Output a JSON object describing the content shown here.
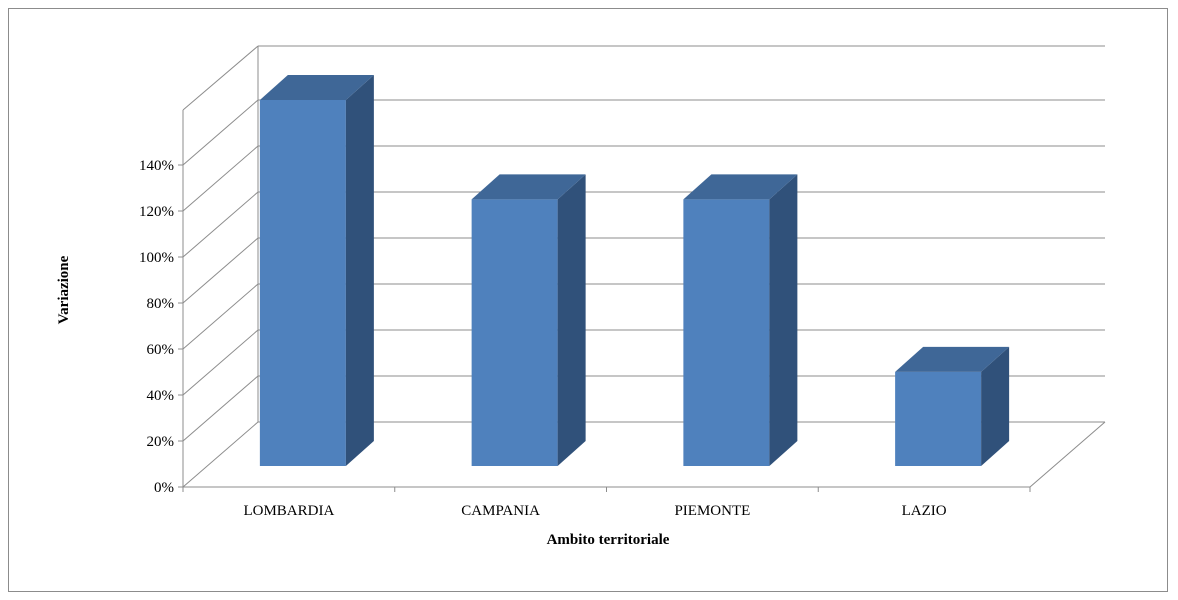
{
  "chart_data": {
    "type": "bar",
    "style": "3d-column",
    "categories": [
      "LOMBARDIA",
      "CAMPANIA",
      "PIEMONTE",
      "LAZIO"
    ],
    "values": [
      140,
      102,
      102,
      36
    ],
    "value_unit": "%",
    "xlabel": "Ambito territoriale",
    "ylabel": "Variazione",
    "ylim": [
      0,
      140
    ],
    "yticks": [
      "0%",
      "20%",
      "40%",
      "60%",
      "80%",
      "100%",
      "120%",
      "140%"
    ],
    "grid": true,
    "legend": "none",
    "colors": {
      "bar_front": "#4f81bd",
      "bar_side": "#30517a",
      "bar_top": "#3f6797",
      "grid": "#8c8c8c"
    }
  }
}
